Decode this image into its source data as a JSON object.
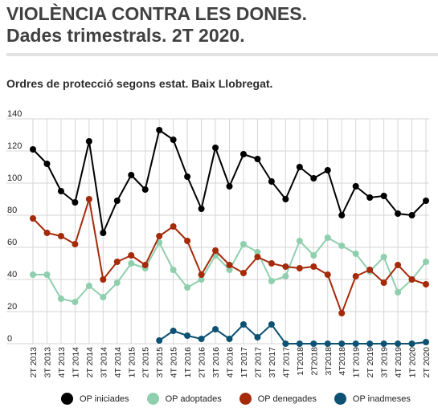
{
  "header": {
    "title_line1": "VIOLÈNCIA CONTRA LES DONES.",
    "title_line2": "Dades trimestrals. 2T 2020."
  },
  "chart_data": {
    "type": "line",
    "title": "Ordres de protecció segons estat. Baix Llobregat.",
    "xlabel": "",
    "ylabel": "",
    "ylim": [
      0,
      140
    ],
    "yticks": [
      0,
      20,
      40,
      60,
      80,
      100,
      120,
      140
    ],
    "grid": true,
    "legend_position": "bottom",
    "categories": [
      "2T 2013",
      "3T 2013",
      "4T 2013",
      "1T 2014",
      "2T 2014",
      "3T 2014",
      "4T 2014",
      "1T 2015",
      "2T 2015",
      "3T 2015",
      "4T 2015",
      "1T 2016",
      "2T 2016",
      "3T 2016",
      "4T 2016",
      "1T 2017",
      "2T 2017",
      "3T 2017",
      "4T 2017",
      "1T2018",
      "2T2018",
      "3T2018",
      "4T2018",
      "1T 2019",
      "2T 2019",
      "3T 2019",
      "4T 2019",
      "1T 2020",
      "2T 2020"
    ],
    "series": [
      {
        "name": "OP iniciades",
        "color": "#000000",
        "values": [
          121,
          112,
          95,
          88,
          126,
          69,
          89,
          105,
          96,
          133,
          127,
          104,
          84,
          122,
          98,
          118,
          115,
          101,
          90,
          110,
          103,
          108,
          80,
          98,
          91,
          92,
          81,
          80,
          89
        ]
      },
      {
        "name": "OP adoptades",
        "color": "#8fcfae",
        "values": [
          43,
          43,
          28,
          26,
          36,
          29,
          38,
          50,
          47,
          63,
          46,
          35,
          40,
          55,
          46,
          62,
          57,
          39,
          42,
          64,
          55,
          66,
          61,
          56,
          45,
          54,
          32,
          40,
          51
        ]
      },
      {
        "name": "OP denegades",
        "color": "#a52a0a",
        "values": [
          78,
          69,
          67,
          62,
          90,
          40,
          51,
          55,
          49,
          67,
          73,
          64,
          43,
          58,
          49,
          44,
          54,
          50,
          48,
          47,
          48,
          43,
          19,
          42,
          46,
          38,
          49,
          40,
          37
        ]
      },
      {
        "name": "OP inadmeses",
        "color": "#0d5273",
        "values": [
          null,
          null,
          null,
          null,
          null,
          null,
          null,
          null,
          null,
          2,
          8,
          5,
          3,
          9,
          3,
          12,
          4,
          12,
          0,
          0,
          0,
          0,
          0,
          0,
          0,
          0,
          0,
          0,
          1
        ]
      }
    ]
  }
}
